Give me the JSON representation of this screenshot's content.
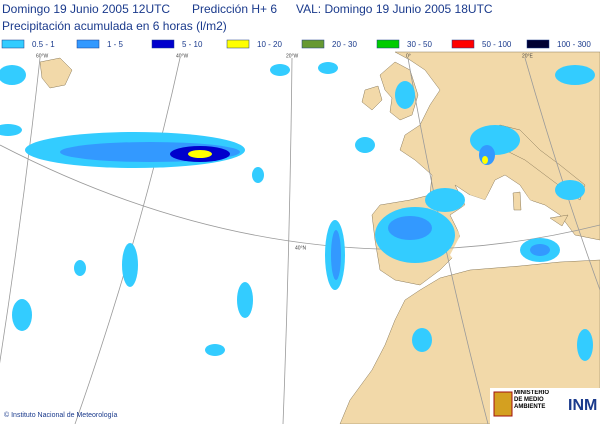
{
  "header": {
    "run": "Domingo 19 Junio 2005 12UTC",
    "forecast": "Predicción H+  6",
    "valid": "VAL: Domingo 19 Junio 2005 18UTC",
    "title": "Precipitación acumulada en 6 horas (l/m2)"
  },
  "legend": [
    {
      "label": "0.5 - 1",
      "color": "#33ccff"
    },
    {
      "label": "1 - 5",
      "color": "#3399ff"
    },
    {
      "label": "5 - 10",
      "color": "#0000cc"
    },
    {
      "label": "10 - 20",
      "color": "#ffff00"
    },
    {
      "label": "20 - 30",
      "color": "#669933"
    },
    {
      "label": "30 - 50",
      "color": "#00cc00"
    },
    {
      "label": "50 - 100",
      "color": "#ff0000"
    },
    {
      "label": "100 - 300",
      "color": "#000033"
    }
  ],
  "grid_labels": {
    "lon": [
      "60°W",
      "40°W",
      "20°W",
      "0°",
      "20°E"
    ],
    "lat": [
      "40°N"
    ]
  },
  "footer": {
    "copyright": "© Instituto Nacional de Meteorología",
    "ministry": "MINISTERIO DE MEDIO AMBIENTE",
    "logo": "INM"
  }
}
